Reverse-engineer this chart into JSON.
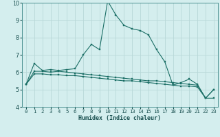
{
  "xlabel": "Humidex (Indice chaleur)",
  "bg_color": "#d4eeee",
  "line_color": "#1a6e65",
  "grid_color": "#b8d8d8",
  "x_values": [
    0,
    1,
    2,
    3,
    4,
    5,
    6,
    7,
    8,
    9,
    10,
    11,
    12,
    13,
    14,
    15,
    16,
    17,
    18,
    19,
    20,
    21,
    22,
    23
  ],
  "line1_y": [
    5.3,
    6.5,
    6.1,
    6.15,
    6.1,
    6.15,
    6.2,
    7.0,
    7.6,
    7.3,
    10.1,
    9.3,
    8.7,
    8.5,
    8.4,
    8.15,
    7.3,
    6.6,
    5.25,
    5.4,
    5.6,
    5.3,
    4.5,
    5.0
  ],
  "line2_y": [
    5.3,
    6.05,
    6.05,
    6.0,
    6.05,
    6.0,
    5.95,
    5.9,
    5.85,
    5.8,
    5.75,
    5.7,
    5.65,
    5.6,
    5.55,
    5.5,
    5.5,
    5.45,
    5.4,
    5.35,
    5.3,
    5.25,
    4.5,
    4.5
  ],
  "line3_y": [
    5.3,
    5.9,
    5.9,
    5.85,
    5.85,
    5.8,
    5.8,
    5.75,
    5.7,
    5.65,
    5.6,
    5.55,
    5.5,
    5.5,
    5.45,
    5.4,
    5.35,
    5.3,
    5.25,
    5.2,
    5.2,
    5.15,
    4.5,
    5.0
  ],
  "ylim": [
    4,
    10
  ],
  "xlim_min": -0.5,
  "xlim_max": 23.5,
  "yticks": [
    4,
    5,
    6,
    7,
    8,
    9,
    10
  ],
  "xticks": [
    0,
    1,
    2,
    3,
    4,
    5,
    6,
    7,
    8,
    9,
    10,
    11,
    12,
    13,
    14,
    15,
    16,
    17,
    18,
    19,
    20,
    21,
    22,
    23
  ],
  "xlabel_fontsize": 6.0,
  "tick_fontsize": 5.2,
  "ytick_fontsize": 5.8
}
